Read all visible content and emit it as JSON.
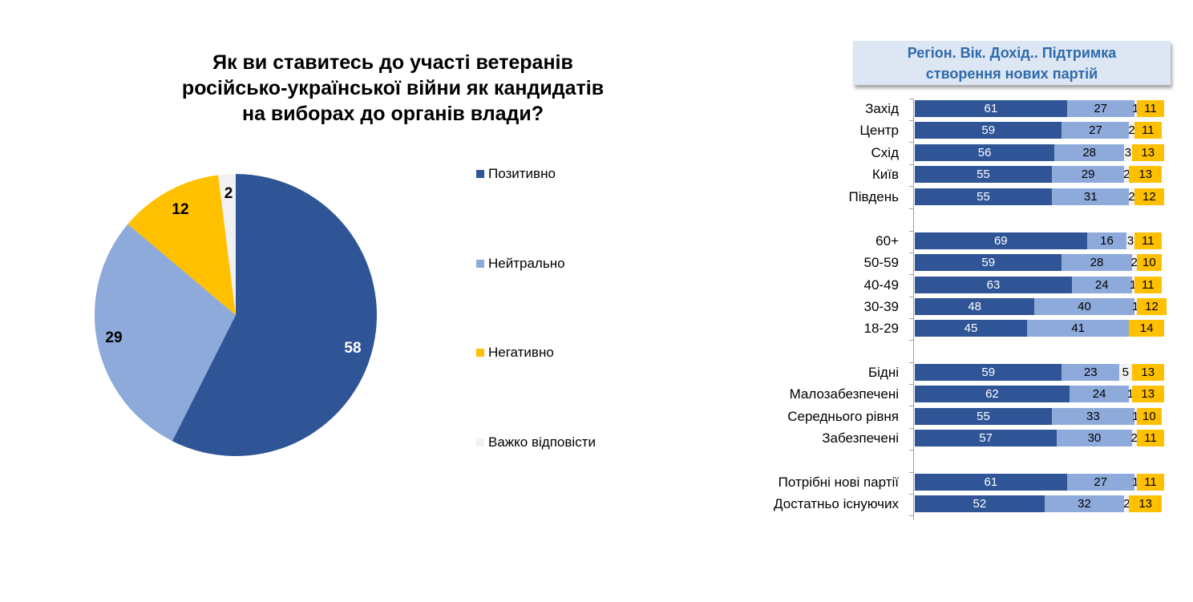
{
  "colors": {
    "positive": "#2f5597",
    "neutral": "#8eaadb",
    "negative": "#ffc000",
    "hard_to_say": "#f2f2f2",
    "title_box_bg": "#dde6f3",
    "title_box_text": "#2e6aab"
  },
  "pie": {
    "title_lines": [
      "Як ви ставитесь до участі ветеранів",
      "російсько-української війни як кандидатів",
      "на виборах до органів влади?"
    ],
    "legend": [
      {
        "label": "Позитивно"
      },
      {
        "label": "Нейтрально"
      },
      {
        "label": "Негативно"
      },
      {
        "label": "Важко відповісти"
      }
    ],
    "slice_labels": [
      "58",
      "29",
      "12",
      "2"
    ]
  },
  "bars": {
    "title_lines": [
      "Регіон. Вік. Дохід.. Підтримка",
      "створення нових партій"
    ],
    "rows": [
      {
        "label": "Захід",
        "pos": 61,
        "neu": 27,
        "hard": 1,
        "neg": 11
      },
      {
        "label": "Центр",
        "pos": 59,
        "neu": 27,
        "hard": 2,
        "neg": 11
      },
      {
        "label": "Схід",
        "pos": 56,
        "neu": 28,
        "hard": 3,
        "neg": 13
      },
      {
        "label": "Київ",
        "pos": 55,
        "neu": 29,
        "hard": 2,
        "neg": 13
      },
      {
        "label": "Південь",
        "pos": 55,
        "neu": 31,
        "hard": 2,
        "neg": 12
      },
      {
        "label": "60+",
        "pos": 69,
        "neu": 16,
        "hard": 3,
        "neg": 11
      },
      {
        "label": "50-59",
        "pos": 59,
        "neu": 28,
        "hard": 2,
        "neg": 10
      },
      {
        "label": "40-49",
        "pos": 63,
        "neu": 24,
        "hard": 1,
        "neg": 11
      },
      {
        "label": "30-39",
        "pos": 48,
        "neu": 40,
        "hard": 1,
        "neg": 12
      },
      {
        "label": "18-29",
        "pos": 45,
        "neu": 41,
        "hard": 0,
        "neg": 14
      },
      {
        "label": "Бідні",
        "pos": 59,
        "neu": 23,
        "hard": 5,
        "neg": 13
      },
      {
        "label": "Малозабезпечені",
        "pos": 62,
        "neu": 24,
        "hard": 1,
        "neg": 13
      },
      {
        "label": "Середнього рівня",
        "pos": 55,
        "neu": 33,
        "hard": 1,
        "neg": 10
      },
      {
        "label": "Забезпечені",
        "pos": 57,
        "neu": 30,
        "hard": 2,
        "neg": 11
      },
      {
        "label": "Потрібні нові партії",
        "pos": 61,
        "neu": 27,
        "hard": 1,
        "neg": 11
      },
      {
        "label": "Достатньо існуючих",
        "pos": 52,
        "neu": 32,
        "hard": 2,
        "neg": 13
      }
    ]
  },
  "chart_data": [
    {
      "type": "pie",
      "title": "Як ви ставитесь до участі ветеранів російсько-української війни як кандидатів на виборах до органів влади?",
      "categories": [
        "Позитивно",
        "Нейтрально",
        "Негативно",
        "Важко відповісти"
      ],
      "values": [
        58,
        29,
        12,
        2
      ],
      "colors": [
        "#2f5597",
        "#8eaadb",
        "#ffc000",
        "#f2f2f2"
      ],
      "legend_position": "right",
      "unit": "%"
    },
    {
      "type": "bar",
      "orientation": "horizontal",
      "stacked": true,
      "title": "Регіон. Вік. Дохід.. Підтримка створення нових партій",
      "categories": [
        "Захід",
        "Центр",
        "Схід",
        "Київ",
        "Південь",
        "60+",
        "50-59",
        "40-49",
        "30-39",
        "18-29",
        "Бідні",
        "Малозабезпечені",
        "Середнього рівня",
        "Забезпечені",
        "Потрібні нові партії",
        "Достатньо існуючих"
      ],
      "groups": [
        {
          "name": "Регіон",
          "categories": [
            "Захід",
            "Центр",
            "Схід",
            "Київ",
            "Південь"
          ]
        },
        {
          "name": "Вік",
          "categories": [
            "60+",
            "50-59",
            "40-49",
            "30-39",
            "18-29"
          ]
        },
        {
          "name": "Дохід",
          "categories": [
            "Бідні",
            "Малозабезпечені",
            "Середнього рівня",
            "Забезпечені"
          ]
        },
        {
          "name": "Підтримка створення нових партій",
          "categories": [
            "Потрібні нові партії",
            "Достатньо існуючих"
          ]
        }
      ],
      "series": [
        {
          "name": "Позитивно",
          "color": "#2f5597",
          "values": [
            61,
            59,
            56,
            55,
            55,
            69,
            59,
            63,
            48,
            45,
            59,
            62,
            55,
            57,
            61,
            52
          ]
        },
        {
          "name": "Нейтрально",
          "color": "#8eaadb",
          "values": [
            27,
            27,
            28,
            29,
            31,
            16,
            28,
            24,
            40,
            41,
            23,
            24,
            33,
            30,
            27,
            32
          ]
        },
        {
          "name": "Важко відповісти",
          "color": "#f2f2f2",
          "values": [
            1,
            2,
            3,
            2,
            2,
            3,
            2,
            1,
            1,
            0,
            5,
            1,
            1,
            2,
            1,
            2
          ]
        },
        {
          "name": "Негативно",
          "color": "#ffc000",
          "values": [
            11,
            11,
            13,
            13,
            12,
            11,
            10,
            11,
            12,
            14,
            13,
            13,
            10,
            11,
            11,
            13
          ]
        }
      ],
      "xlim": [
        0,
        100
      ],
      "grid": false,
      "unit": "%"
    }
  ]
}
